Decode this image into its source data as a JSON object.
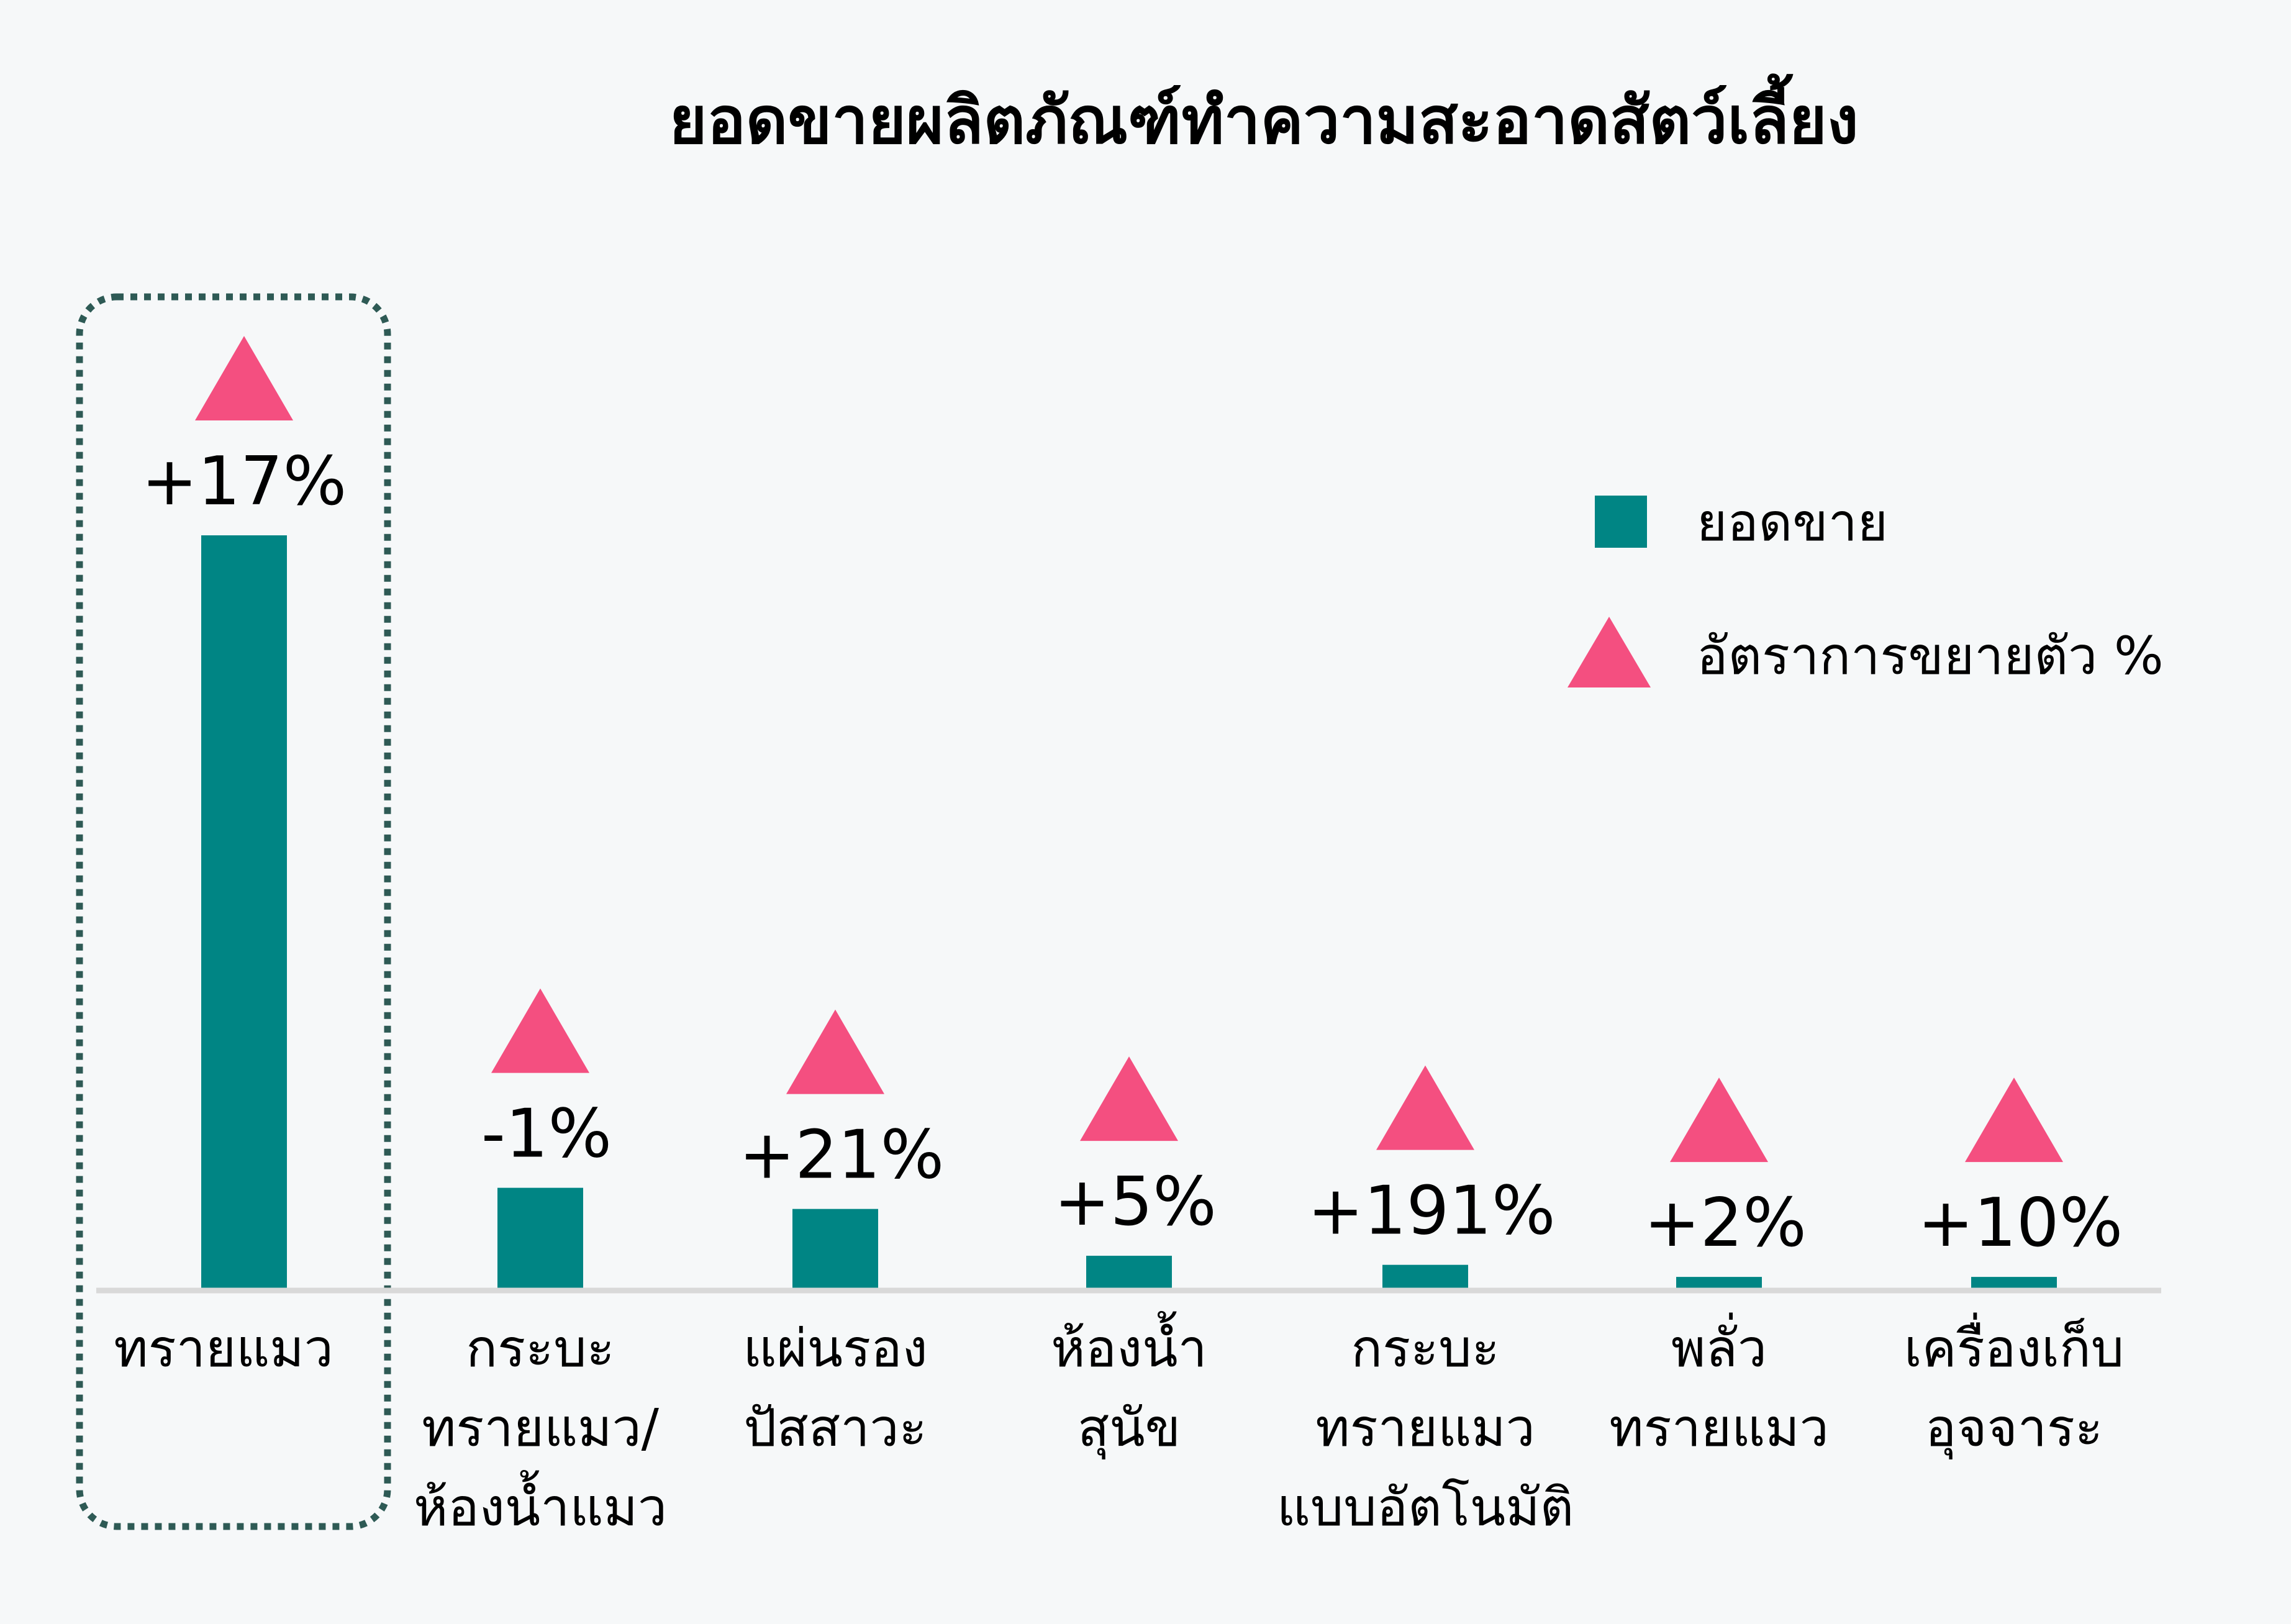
{
  "chart_data": {
    "type": "bar",
    "title": "ยอดขายผลิตภัณฑ์ทำความสะอาดสัตว์เลี้ยง",
    "categories": [
      [
        "ทรายแมว"
      ],
      [
        "กระบะ",
        "ทรายแมว/",
        "ห้องน้ำแมว"
      ],
      [
        "แผ่นรอง",
        "ปัสสาวะ"
      ],
      [
        "ห้องน้ำ",
        "สุนัข"
      ],
      [
        "กระบะ",
        "ทรายแมว",
        "แบบอัตโนมัติ"
      ],
      [
        "พลั่ว",
        "ทรายแมว"
      ],
      [
        "เครื่องเก็บ",
        "อุจจาระ"
      ]
    ],
    "series": [
      {
        "name": "ยอดขาย",
        "values": [
          100,
          13.6,
          10.8,
          4.6,
          3.4,
          1.8,
          1.8
        ]
      },
      {
        "name": "อัตราการขยายตัว %",
        "labels": [
          "+17%",
          "-1%",
          "+21%",
          "+5%",
          "+191%",
          "+2%",
          "+10%"
        ]
      }
    ],
    "legend": {
      "position": "top-right",
      "items": [
        {
          "label": "ยอดขาย",
          "marker": "square"
        },
        {
          "label": "อัตราการขยายตัว %",
          "marker": "triangle"
        }
      ]
    },
    "highlight_index": 0,
    "ylim": [
      0,
      100
    ],
    "xlabel": "",
    "ylabel": "",
    "grid": false,
    "colors": {
      "bar": "#008584",
      "triangle": "#f44f80",
      "baseline": "#d9d9d9",
      "highlight_border": "#2e5a55",
      "text": "#000000"
    }
  }
}
